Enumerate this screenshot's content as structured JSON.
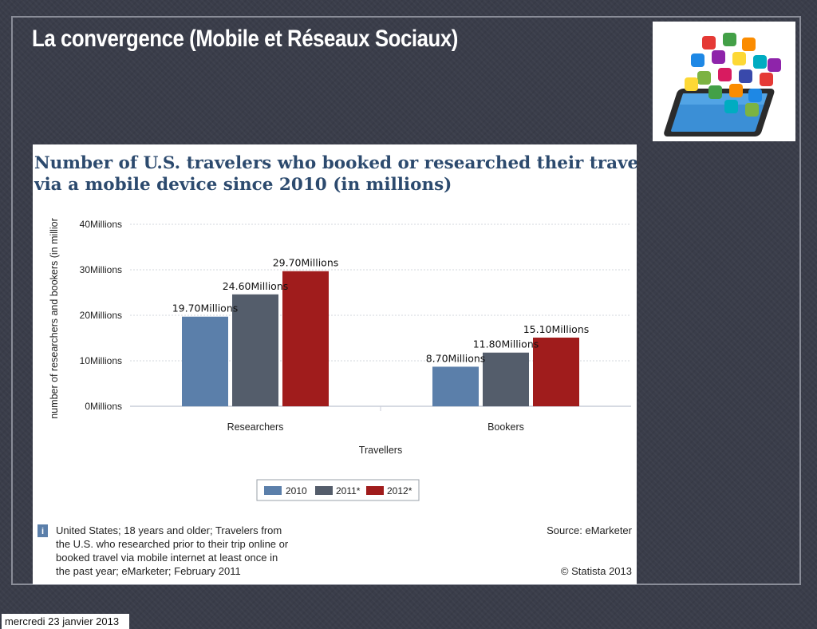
{
  "slide": {
    "title": "La convergence (Mobile et Réseaux Sociaux)",
    "footer_date": "mercredi 23 janvier 2013"
  },
  "chart_data": {
    "type": "bar",
    "title_lines": [
      "Number of U.S. travelers who booked or researched their travel",
      "via a mobile device since 2010 (in millions)"
    ],
    "xlabel": "Travellers",
    "ylabel": "number of researchers and bookers (in millior",
    "categories": [
      "Researchers",
      "Bookers"
    ],
    "ylim": [
      0,
      40
    ],
    "yticks": [
      "0Millions",
      "10Millions",
      "20Millions",
      "30Millions",
      "40Millions"
    ],
    "ytick_values": [
      0,
      10,
      20,
      30,
      40
    ],
    "series": [
      {
        "name": "2010",
        "color": "#5b7faa",
        "values": [
          19.7,
          8.7
        ],
        "labels": [
          "19.70Millions",
          "8.70Millions"
        ]
      },
      {
        "name": "2011*",
        "color": "#545d6b",
        "values": [
          24.6,
          11.8
        ],
        "labels": [
          "24.60Millions",
          "11.80Millions"
        ]
      },
      {
        "name": "2012*",
        "color": "#a01c1c",
        "values": [
          29.7,
          15.1
        ],
        "labels": [
          "29.70Millions",
          "15.10Millions"
        ]
      }
    ],
    "grid": true,
    "legend_position": "bottom-center",
    "info_icon": "i",
    "note_lines": [
      "United States; 18 years and older; Travelers from",
      "the U.S. who researched prior to their trip online or",
      "booked travel via mobile internet at least once in",
      "the past year; eMarketer; February 2011"
    ],
    "source": "Source: eMarketer",
    "copyright": "© Statista 2013"
  },
  "illustration": {
    "icon": "tablet-with-app-icons-icon",
    "colors": [
      "#e53935",
      "#43a047",
      "#fb8c00",
      "#1e88e5",
      "#8e24aa",
      "#fdd835",
      "#00acc1",
      "#7cb342",
      "#d81b60",
      "#3949ab"
    ]
  }
}
